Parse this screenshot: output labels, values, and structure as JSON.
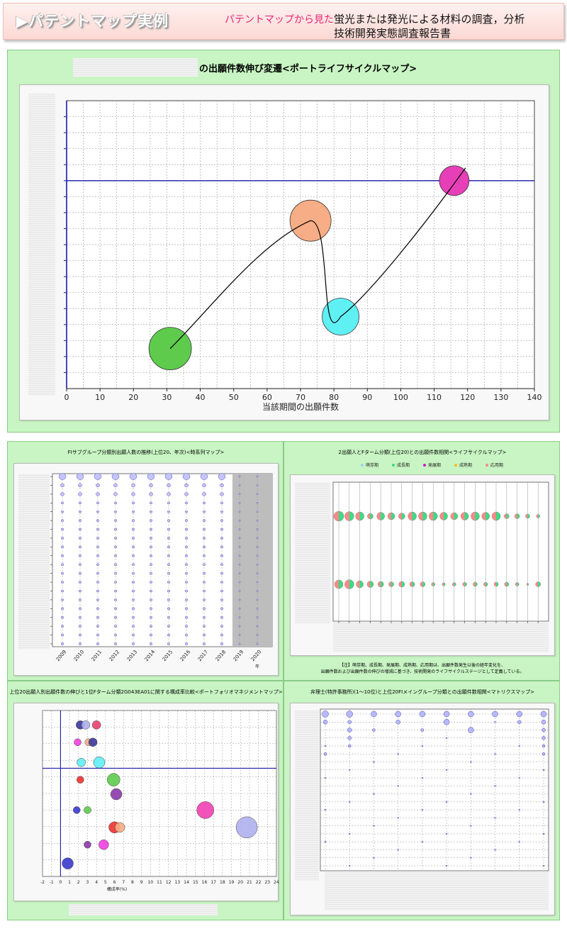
{
  "header": {
    "title": "▶パテントマップ実例",
    "subtitle_pink": "パテントマップから見た",
    "subtitle_line1": "蛍光または発光による材料の調査，分析",
    "subtitle_line2": "技術開発実態調査報告書"
  },
  "colors": {
    "panel_bg": "#c8f5c3",
    "axis_blue": "#1a1aa8",
    "bubble_green": "#5ecb4c",
    "bubble_orange": "#f7ad85",
    "bubble_cyan": "#5ff0f4",
    "bubble_magenta": "#e63fb7"
  },
  "main_chart": {
    "title": "の出願件数伸び変遷<ポートライフサイクルマップ>",
    "xlabel": "当該期間の出願件数",
    "x_ticks": [
      "0",
      "10",
      "20",
      "30",
      "40",
      "50",
      "60",
      "70",
      "80",
      "90",
      "100",
      "110",
      "120",
      "130",
      "140"
    ]
  },
  "chart_data": [
    {
      "type": "scatter",
      "title": "の出願件数伸び変遷<ポートライフサイクルマップ>",
      "xlabel": "当該期間の出願件数",
      "xlim": [
        0,
        140
      ],
      "ylim": [
        0,
        18
      ],
      "points": [
        {
          "x": 31,
          "y": 2.5,
          "r": 30,
          "color": "#5ecb4c"
        },
        {
          "x": 73,
          "y": 10.5,
          "r": 29,
          "color": "#f7ad85"
        },
        {
          "x": 82,
          "y": 4.5,
          "r": 26,
          "color": "#5ff0f4"
        },
        {
          "x": 116,
          "y": 13,
          "r": 21,
          "color": "#e63fb7"
        }
      ],
      "hline": 13
    },
    {
      "type": "scatter",
      "title": "FIサブグループ分類別出願人数の推移(上位20、年次)<時系列マップ>",
      "x_ticks": [
        "2009",
        "2010",
        "2011",
        "2012",
        "2013",
        "2014",
        "2015",
        "2016",
        "2017",
        "2018",
        "2019",
        "2020"
      ],
      "x_unit": "年",
      "rows": 20
    },
    {
      "type": "scatter",
      "title": "2出願人とFターム分類(上位20)との出願件数相関<ライフサイクルマップ>",
      "legend": [
        "萌芽期",
        "成長期",
        "発展期",
        "成熟期",
        "応用期"
      ],
      "legend_colors": [
        "#9fd0f0",
        "#3ddc84",
        "#d018c8",
        "#f0c020",
        "#f58a8a"
      ],
      "columns": 20,
      "note_line1": "【注】萌芽期、成長期、発展期、成熟期、応用期は、出願件数発生以後の経年変化を、",
      "note_line2": "出願件数および出願件数の伸びの増減に基づき、技術開発のライフサイクルステージとして定義している。"
    },
    {
      "type": "scatter",
      "title": "上位20出願人別出願件数の伸びと1位Fターム分類2G043EA01に関する構成率比較<ポートフォリオマネジメントマップ>",
      "xlabel": "構成率(%)",
      "xlim": [
        -2,
        24
      ],
      "x_ticks": [
        "-2",
        "-1",
        "0",
        "1",
        "2",
        "3",
        "4",
        "5",
        "6",
        "7",
        "8",
        "9",
        "10",
        "11",
        "12",
        "13",
        "14",
        "15",
        "16",
        "17",
        "18",
        "19",
        "20",
        "21",
        "22",
        "23",
        "24"
      ],
      "points": [
        {
          "x": 2.2,
          "y": 8.0,
          "color": "#3a3a9a"
        },
        {
          "x": 2.8,
          "y": 8.0,
          "color": "#b0b0f0"
        },
        {
          "x": 4.0,
          "y": 8.0,
          "color": "#e84070"
        },
        {
          "x": 1.9,
          "y": 6.8,
          "color": "#f040e0"
        },
        {
          "x": 3.1,
          "y": 6.8,
          "color": "#f7ad85"
        },
        {
          "x": 3.6,
          "y": 6.8,
          "color": "#3a3a9a"
        },
        {
          "x": 2.3,
          "y": 5.4,
          "color": "#5ff0f4"
        },
        {
          "x": 4.3,
          "y": 5.4,
          "color": "#5ff0f4"
        },
        {
          "x": 2.2,
          "y": 4.2,
          "color": "#f03030"
        },
        {
          "x": 5.9,
          "y": 4.2,
          "color": "#5ecb4c"
        },
        {
          "x": 6.2,
          "y": 3.2,
          "color": "#8a3aa8"
        },
        {
          "x": 1.8,
          "y": 2.1,
          "color": "#3a3acc"
        },
        {
          "x": 3.0,
          "y": 2.1,
          "color": "#5ecb4c"
        },
        {
          "x": 16.1,
          "y": 2.1,
          "color": "#f040b0"
        },
        {
          "x": 6.0,
          "y": 0.9,
          "color": "#f03030"
        },
        {
          "x": 6.6,
          "y": 0.9,
          "color": "#f7ad85"
        },
        {
          "x": 20.7,
          "y": 0.9,
          "color": "#b0b0f0"
        },
        {
          "x": 3.0,
          "y": -0.3,
          "color": "#8a3aa8"
        },
        {
          "x": 4.8,
          "y": -0.3,
          "color": "#f040e0"
        },
        {
          "x": 0.8,
          "y": -1.6,
          "color": "#3a3acc"
        }
      ]
    },
    {
      "type": "scatter",
      "title": "弁理士(特許事務所)(1～10位)と上位20FIメイングループ分類との出願件数相関<マトリクスマップ>",
      "columns": 10,
      "rows": 20
    }
  ]
}
